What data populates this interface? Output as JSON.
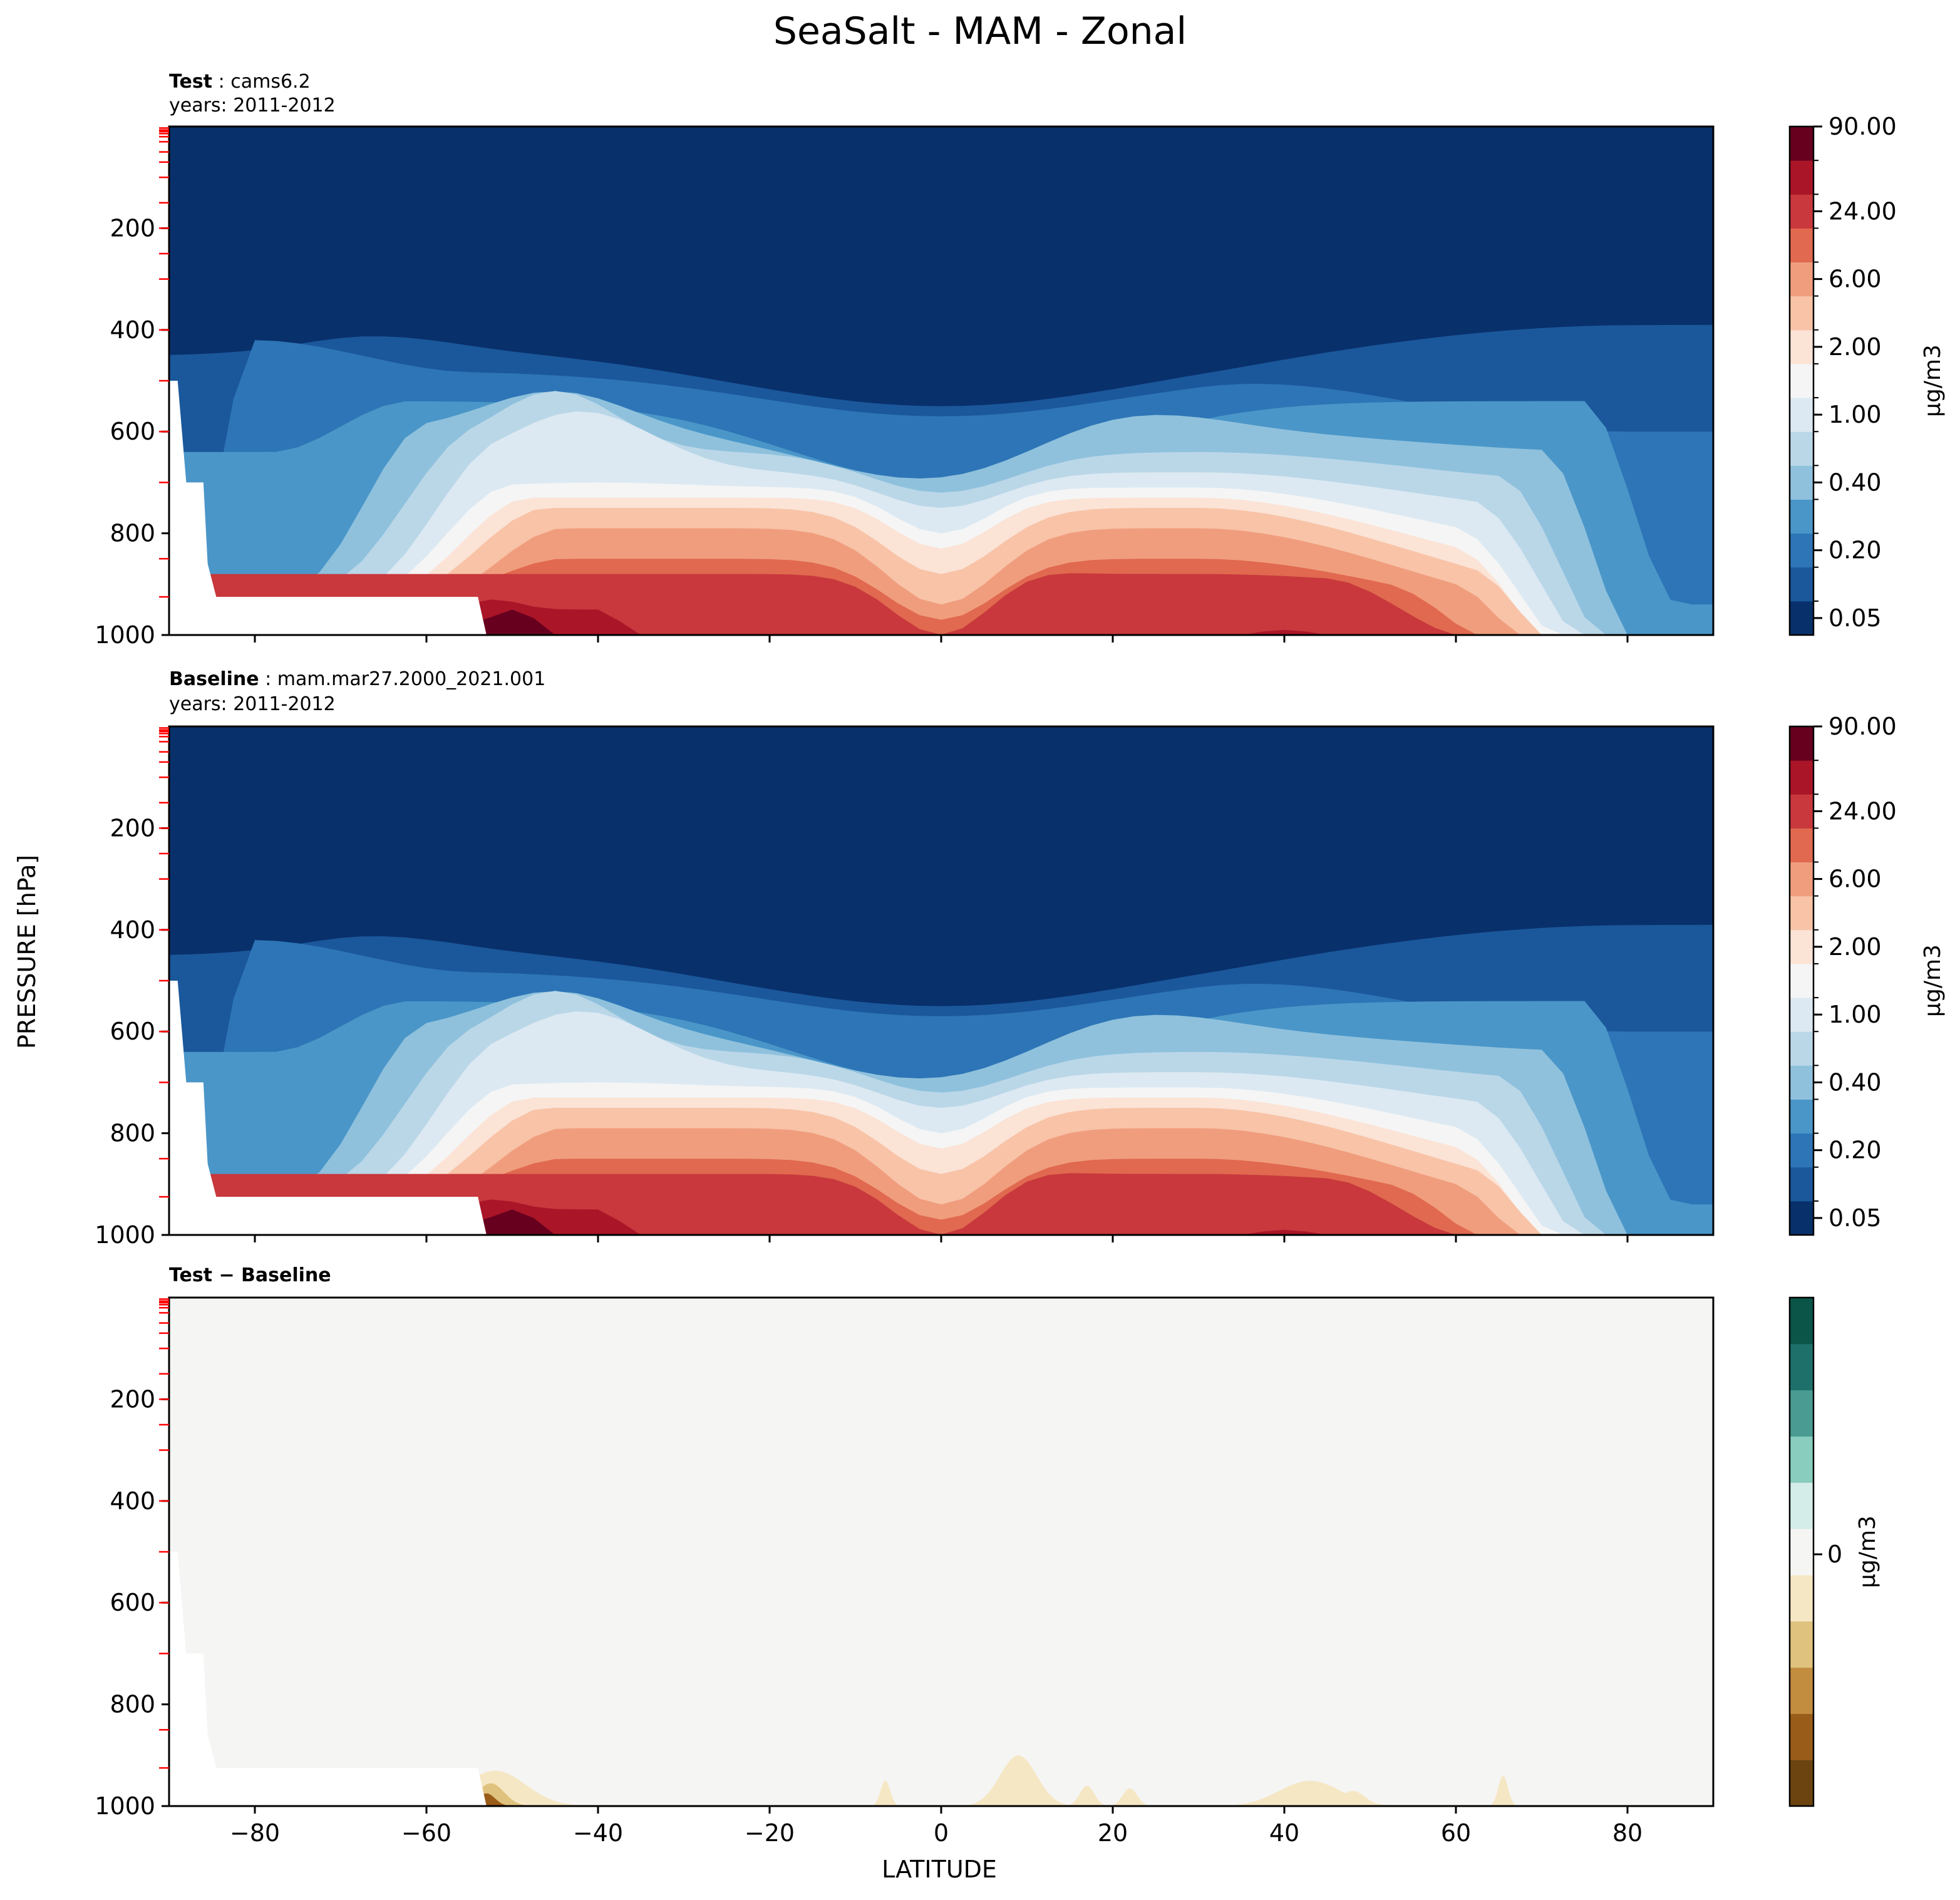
{
  "figure": {
    "title": "SeaSalt - MAM - Zonal",
    "shared_ylabel": "PRESSURE [hPa]",
    "shared_xlabel": "LATITUDE"
  },
  "colors": {
    "seq_levels": [
      "#08306b",
      "#1b579b",
      "#2d75b6",
      "#4a96c8",
      "#8fc1dd",
      "#bad7e8",
      "#dce9f2",
      "#f5f5f5",
      "#fbe3d6",
      "#f8c3a7",
      "#f09d7e",
      "#e0694f",
      "#c8383c",
      "#aa1528",
      "#67001f"
    ],
    "diff_levels": [
      "#6b4410",
      "#9a5c19",
      "#c38d3f",
      "#dfc27d",
      "#f6e7c4",
      "#f5f5f4",
      "#d4ede9",
      "#88cdbd",
      "#4a9c92",
      "#1d716a",
      "#0a5448"
    ],
    "mask": "#ffffff",
    "ticks_red": "#ff0000"
  },
  "chart_data": [
    {
      "type": "heatmap",
      "panel": "test",
      "label_bold": "Test",
      "label_rest": ": cams6.2",
      "years": "years: 2011-2012",
      "xlim": [
        -90,
        90
      ],
      "ylim": [
        1000,
        0
      ],
      "xticks": [
        "−80",
        "−60",
        "−40",
        "−20",
        "0",
        "20",
        "40",
        "60",
        "80"
      ],
      "yticks": [
        "200",
        "400",
        "600",
        "800",
        "1000"
      ],
      "colorbar_ticks": [
        "90.00",
        "24.00",
        "6.00",
        "2.00",
        "1.00",
        "0.40",
        "0.20",
        "0.05"
      ],
      "colorbar_label": "μg/m3"
    },
    {
      "type": "heatmap",
      "panel": "baseline",
      "label_bold": "Baseline",
      "label_rest": ": mam.mar27.2000_2021.001",
      "years": "years: 2011-2012",
      "xlim": [
        -90,
        90
      ],
      "ylim": [
        1000,
        0
      ],
      "xticks": [
        "−80",
        "−60",
        "−40",
        "−20",
        "0",
        "20",
        "40",
        "60",
        "80"
      ],
      "yticks": [
        "200",
        "400",
        "600",
        "800",
        "1000"
      ],
      "colorbar_ticks": [
        "90.00",
        "24.00",
        "6.00",
        "2.00",
        "1.00",
        "0.40",
        "0.20",
        "0.05"
      ],
      "colorbar_label": "μg/m3"
    },
    {
      "type": "heatmap",
      "panel": "difference",
      "label_bold": "Test − Baseline",
      "xlim": [
        -90,
        90
      ],
      "ylim": [
        1000,
        0
      ],
      "xticks": [
        "−80",
        "−60",
        "−40",
        "−20",
        "0",
        "20",
        "40",
        "60",
        "80"
      ],
      "yticks": [
        "200",
        "400",
        "600",
        "800",
        "1000"
      ],
      "colorbar_ticks": [
        "0"
      ],
      "colorbar_label": "μg/m3"
    }
  ]
}
